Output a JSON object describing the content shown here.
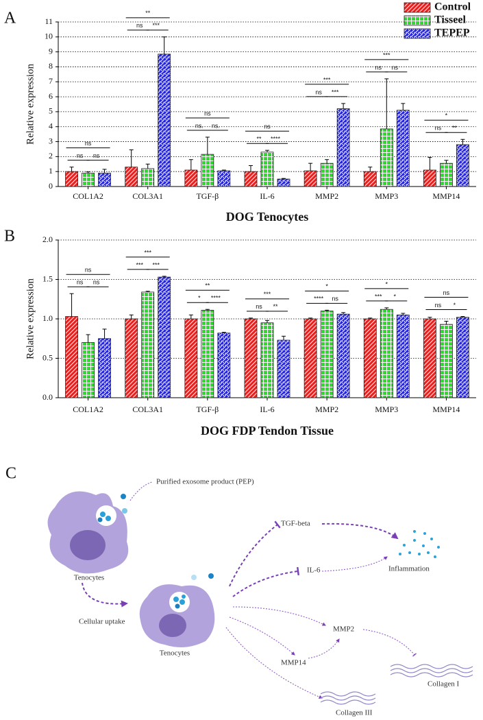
{
  "chart_data": [
    {
      "type": "bar",
      "panel": "A",
      "title": "DOG Tenocytes",
      "y_label": "Relative expression",
      "categories": [
        "COL1A2",
        "COL3A1",
        "TGF-β",
        "IL-6",
        "MMP2",
        "MMP3",
        "MMP14"
      ],
      "series": [
        {
          "name": "Control",
          "color": "#e8201e",
          "pattern": "diagonal",
          "values": [
            1.0,
            1.3,
            1.1,
            1.0,
            1.05,
            1.0,
            1.1
          ],
          "errors": [
            0.3,
            1.15,
            0.7,
            0.4,
            0.5,
            0.3,
            0.85
          ]
        },
        {
          "name": "Tisseel",
          "color": "#2ddc2d",
          "pattern": "grid",
          "values": [
            0.9,
            1.2,
            2.15,
            2.3,
            1.55,
            3.85,
            1.55
          ],
          "errors": [
            0.08,
            0.3,
            1.15,
            0.12,
            0.25,
            3.35,
            0.2
          ]
        },
        {
          "name": "TEPEP",
          "color": "#2424d6",
          "pattern": "brick",
          "values": [
            0.9,
            8.85,
            1.05,
            0.5,
            5.2,
            5.1,
            2.8
          ],
          "errors": [
            0.25,
            1.15,
            0.05,
            0.04,
            0.35,
            0.45,
            0.35
          ]
        }
      ],
      "significance": [
        [
          "ns",
          "ns",
          "ns"
        ],
        [
          "ns",
          "***",
          "**"
        ],
        [
          "ns.",
          "ns.",
          "ns"
        ],
        [
          "**",
          "****",
          "ns"
        ],
        [
          "ns",
          "***",
          "***"
        ],
        [
          "ns",
          "ns",
          "***"
        ],
        [
          "ns",
          "**",
          "*"
        ]
      ],
      "ylim": [
        0,
        11
      ],
      "yticks": [
        0,
        1,
        2,
        3,
        4,
        5,
        6,
        7,
        8,
        9,
        10,
        11
      ],
      "grid": true,
      "legend": "upper right"
    },
    {
      "type": "bar",
      "panel": "B",
      "title": "DOG FDP Tendon Tissue",
      "y_label": "Relative expression",
      "categories": [
        "COL1A2",
        "COL3A1",
        "TGF-β",
        "IL-6",
        "MMP2",
        "MMP3",
        "MMP14"
      ],
      "series": [
        {
          "color": "#e8201e",
          "pattern": "diagonal",
          "values": [
            1.03,
            1.0,
            1.0,
            1.0,
            1.0,
            1.0,
            1.0
          ],
          "errors": [
            0.29,
            0.05,
            0.05,
            0.01,
            0.01,
            0.01,
            0.02
          ]
        },
        {
          "color": "#2ddc2d",
          "pattern": "grid",
          "values": [
            0.7,
            1.34,
            1.11,
            0.95,
            1.1,
            1.12,
            0.93
          ],
          "errors": [
            0.1,
            0.01,
            0.01,
            0.03,
            0.01,
            0.02,
            0.04
          ]
        },
        {
          "color": "#2424d6",
          "pattern": "brick",
          "values": [
            0.75,
            1.53,
            0.82,
            0.73,
            1.06,
            1.05,
            1.02
          ],
          "errors": [
            0.12,
            0.01,
            0.01,
            0.05,
            0.02,
            0.02,
            0.01
          ]
        }
      ],
      "significance": [
        [
          "ns",
          "ns",
          "ns"
        ],
        [
          "***",
          "***",
          "***"
        ],
        [
          "*",
          "****",
          "**"
        ],
        [
          "ns",
          "**",
          "***"
        ],
        [
          "****",
          "ns",
          "*"
        ],
        [
          "***",
          "*",
          "*"
        ],
        [
          "ns",
          "*",
          "ns"
        ]
      ],
      "ylim": [
        0,
        2.0
      ],
      "yticks": [
        {
          "value": 0,
          "label": "0.0"
        },
        0.5,
        {
          "value": 1,
          "label": "1.0"
        },
        1.5,
        {
          "value": 2,
          "label": "2.0"
        }
      ],
      "grid": true
    }
  ],
  "diagram": {
    "panel": "C",
    "labels": [
      "Purified exosome product (PEP)",
      "Tenocytes",
      "Cellular uptake",
      "Tenocytes",
      "TGF-beta",
      "IL-6",
      "Inflammation",
      "MMP2",
      "MMP14",
      "Collagen I",
      "Collagen III"
    ]
  }
}
